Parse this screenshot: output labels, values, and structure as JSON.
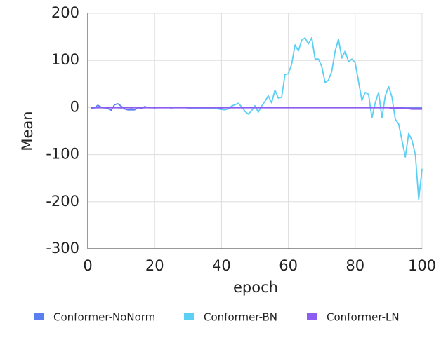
{
  "chart_data": {
    "type": "line",
    "xlabel": "epoch",
    "ylabel": "Mean",
    "x": [
      1,
      2,
      3,
      4,
      5,
      6,
      7,
      8,
      9,
      10,
      11,
      12,
      13,
      14,
      15,
      16,
      17,
      18,
      19,
      20,
      21,
      22,
      23,
      24,
      25,
      26,
      27,
      28,
      29,
      30,
      31,
      32,
      33,
      34,
      35,
      36,
      37,
      38,
      39,
      40,
      41,
      42,
      43,
      44,
      45,
      46,
      47,
      48,
      49,
      50,
      51,
      52,
      53,
      54,
      55,
      56,
      57,
      58,
      59,
      60,
      61,
      62,
      63,
      64,
      65,
      66,
      67,
      68,
      69,
      70,
      71,
      72,
      73,
      74,
      75,
      76,
      77,
      78,
      79,
      80,
      81,
      82,
      83,
      84,
      85,
      86,
      87,
      88,
      89,
      90,
      91,
      92,
      93,
      94,
      95,
      96,
      97,
      98,
      99,
      100
    ],
    "series": [
      {
        "name": "Conformer-NoNorm",
        "color": "#5b7ff0",
        "values": [
          -1,
          -1,
          5,
          1,
          0,
          -2,
          -6,
          6,
          8,
          3,
          -3,
          -5,
          -5,
          -5,
          0,
          -2,
          2,
          0,
          0,
          0,
          0,
          0,
          0,
          0,
          0,
          0,
          0,
          0,
          0,
          0,
          -1,
          -1,
          -1,
          -1,
          -1,
          -1,
          -1,
          -1,
          -1,
          -1,
          0,
          0,
          0,
          0,
          0,
          0,
          0,
          0,
          0,
          0,
          0,
          0,
          0,
          0,
          0,
          0,
          0,
          0,
          0,
          0,
          0,
          0,
          0,
          0,
          0,
          0,
          0,
          0,
          0,
          0,
          0,
          0,
          0,
          0,
          0,
          0,
          0,
          0,
          0,
          0,
          0,
          0,
          0,
          0,
          0,
          0,
          0,
          0,
          0,
          0,
          0,
          0,
          0,
          0,
          -1,
          -1,
          -1,
          -1,
          -1,
          -1
        ]
      },
      {
        "name": "Conformer-BN",
        "color": "#5ccff5",
        "values": [
          0,
          -1,
          2,
          0,
          -1,
          0,
          0,
          1,
          0,
          -1,
          0,
          0,
          -1,
          0,
          0,
          1,
          0,
          0,
          0,
          -1,
          0,
          0,
          0,
          0,
          -1,
          0,
          0,
          0,
          0,
          -1,
          -1,
          -1,
          -2,
          -2,
          -2,
          -2,
          -2,
          -1,
          -3,
          -4,
          -5,
          -3,
          3,
          6,
          9,
          2,
          -8,
          -14,
          -7,
          4,
          -10,
          3,
          13,
          25,
          10,
          37,
          20,
          22,
          70,
          72,
          92,
          133,
          120,
          143,
          148,
          135,
          148,
          103,
          103,
          87,
          53,
          58,
          77,
          120,
          145,
          105,
          120,
          97,
          103,
          95,
          55,
          15,
          32,
          28,
          -22,
          10,
          32,
          -22,
          25,
          45,
          22,
          -25,
          -35,
          -70,
          -105,
          -55,
          -70,
          -100,
          -195,
          -130
        ]
      },
      {
        "name": "Conformer-LN",
        "color": "#8d5cf0",
        "values": [
          0,
          0,
          0,
          0,
          0,
          0,
          0,
          0,
          0,
          0,
          0,
          0,
          0,
          0,
          0,
          0,
          0,
          0,
          0,
          0,
          0,
          0,
          0,
          0,
          0,
          0,
          0,
          0,
          0,
          0,
          0,
          0,
          0,
          0,
          0,
          0,
          0,
          0,
          0,
          0,
          0,
          0,
          0,
          0,
          0,
          0,
          0,
          0,
          0,
          0,
          0,
          0,
          0,
          0,
          0,
          0,
          0,
          0,
          0,
          0,
          0,
          0,
          0,
          0,
          0,
          0,
          0,
          0,
          0,
          0,
          0,
          0,
          0,
          0,
          0,
          0,
          0,
          0,
          0,
          0,
          0,
          0,
          0,
          0,
          0,
          0,
          0,
          0,
          0,
          0,
          -1,
          -1,
          -1,
          -2,
          -2,
          -2,
          -3,
          -3,
          -3,
          -3
        ]
      }
    ],
    "xlim": [
      0,
      100
    ],
    "xticks": [
      0,
      20,
      40,
      60,
      80,
      100
    ],
    "ylim": [
      -300,
      200
    ],
    "yticks": [
      -300,
      -200,
      -100,
      0,
      100,
      200
    ],
    "grid": true,
    "legend": "bottom"
  }
}
